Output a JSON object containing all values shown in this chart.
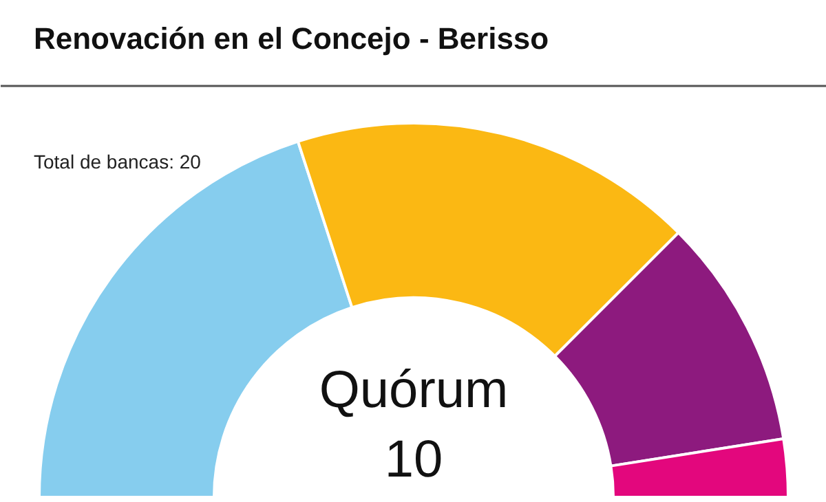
{
  "chart_data": {
    "type": "donut",
    "title": "Renovación en el Concejo - Berisso",
    "categories": [
      null,
      null,
      null,
      null
    ],
    "values": [
      40,
      35,
      20,
      5
    ],
    "colors": [
      "#86cdee",
      "#fbb813",
      "#8d1a7e",
      "#e3077d"
    ],
    "annotations": [
      "Total de bancas: 20",
      "Quórum 10"
    ]
  }
}
